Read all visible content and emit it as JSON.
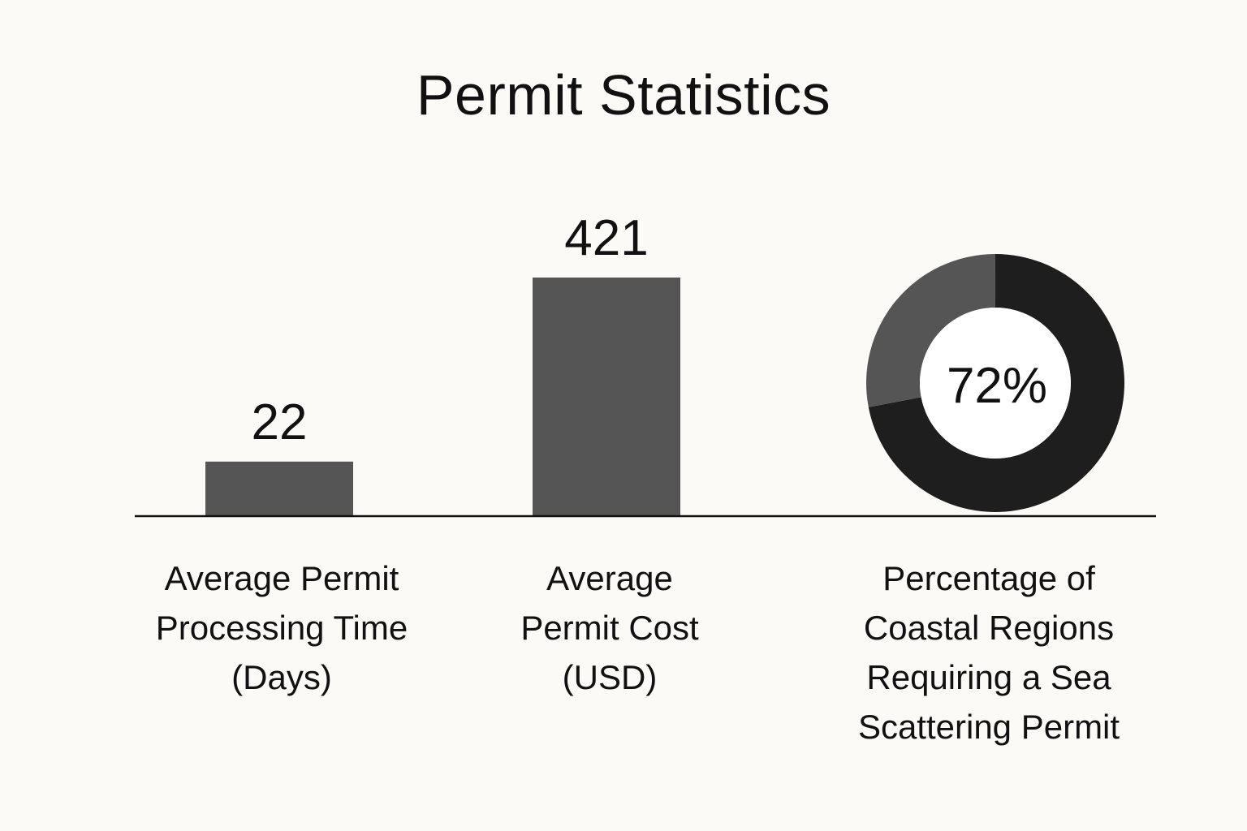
{
  "title": "Permit Statistics",
  "colors": {
    "background": "#fbfaf6",
    "bar": "#555555",
    "donut_filled": "#1e1e1e",
    "donut_remainder": "#555555",
    "text": "#111111",
    "baseline": "#111111"
  },
  "chart_data": [
    {
      "type": "bar",
      "categories": [
        "Average Permit Processing Time (Days)",
        "Average Permit Cost (USD)"
      ],
      "category_label_lines": [
        [
          "Average Permit",
          "Processing Time",
          "(Days)"
        ],
        [
          "Average",
          "Permit Cost",
          "(USD)"
        ]
      ],
      "values": [
        22,
        421
      ],
      "data_labels": [
        "22",
        "421"
      ],
      "title": "",
      "xlabel": "",
      "ylabel": "",
      "ylim": [
        0,
        421
      ],
      "grid": false
    },
    {
      "type": "pie",
      "variant": "donut",
      "category": "Percentage of Coastal Regions Requiring a Sea Scattering Permit",
      "category_label_lines": [
        "Percentage of",
        "Coastal Regions",
        "Requiring a Sea",
        "Scattering Permit"
      ],
      "value_percent": 72,
      "center_label": "72%"
    }
  ]
}
